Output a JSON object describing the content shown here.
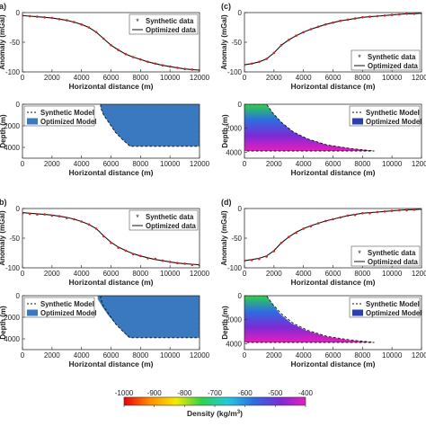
{
  "chart_data": [
    {
      "panel": "a",
      "label": "a)",
      "type": "line",
      "xlabel": "Horizontal distance (m)",
      "ylabel": "Anomaly (mGal)",
      "xlim": [
        0,
        12000
      ],
      "ylim": [
        -100,
        0
      ],
      "xticks": [
        0,
        2000,
        4000,
        6000,
        8000,
        10000,
        12000
      ],
      "yticks": [
        -100,
        -50,
        0
      ],
      "legend": {
        "position": "top-right",
        "entries": [
          "Synthetic data",
          "Optimized data"
        ]
      },
      "series": [
        {
          "name": "Synthetic data",
          "style": "markers",
          "x": [
            0,
            500,
            1000,
            1500,
            2000,
            2500,
            3000,
            3500,
            4000,
            4500,
            5000,
            5500,
            6000,
            6500,
            7000,
            7500,
            8000,
            8500,
            9000,
            9500,
            10000,
            10500,
            11000,
            11500,
            12000
          ],
          "y": [
            -5,
            -6,
            -7,
            -8,
            -9,
            -11,
            -13,
            -16,
            -20,
            -25,
            -33,
            -44,
            -55,
            -63,
            -70,
            -75,
            -79,
            -83,
            -86,
            -89,
            -91,
            -93,
            -95,
            -96,
            -97
          ]
        },
        {
          "name": "Optimized data",
          "style": "line",
          "x": [
            0,
            500,
            1000,
            1500,
            2000,
            2500,
            3000,
            3500,
            4000,
            4500,
            5000,
            5500,
            6000,
            6500,
            7000,
            7500,
            8000,
            8500,
            9000,
            9500,
            10000,
            10500,
            11000,
            11500,
            12000
          ],
          "y": [
            -5,
            -6,
            -7,
            -8,
            -9,
            -11,
            -13,
            -16,
            -20,
            -25,
            -33,
            -44,
            -55,
            -63,
            -70,
            -75,
            -79,
            -83,
            -86,
            -89,
            -91,
            -93,
            -95,
            -96,
            -97
          ]
        }
      ]
    },
    {
      "panel": "c",
      "label": "(c)",
      "type": "line",
      "xlabel": "Horizontal distance (m)",
      "ylabel": "Anomaly (mGal)",
      "xlim": [
        0,
        12000
      ],
      "ylim": [
        -100,
        0
      ],
      "xticks": [
        0,
        2000,
        4000,
        6000,
        8000,
        10000,
        12000
      ],
      "yticks": [
        -100,
        -50,
        0
      ],
      "legend": {
        "position": "bottom-right",
        "entries": [
          "Synthetic data",
          "Optimized data"
        ]
      },
      "series": [
        {
          "name": "Synthetic data",
          "style": "markers",
          "x": [
            0,
            500,
            1000,
            1500,
            2000,
            2500,
            3000,
            3500,
            4000,
            4500,
            5000,
            5500,
            6000,
            6500,
            7000,
            7500,
            8000,
            8500,
            9000,
            9500,
            10000,
            10500,
            11000,
            11500,
            12000
          ],
          "y": [
            -88,
            -86,
            -83,
            -78,
            -68,
            -55,
            -46,
            -39,
            -33,
            -28,
            -24,
            -20,
            -17,
            -14,
            -12,
            -10,
            -8,
            -7,
            -6,
            -5,
            -4,
            -3,
            -2,
            -2,
            -1
          ]
        },
        {
          "name": "Optimized data",
          "style": "line",
          "x": [
            0,
            500,
            1000,
            1500,
            2000,
            2500,
            3000,
            3500,
            4000,
            4500,
            5000,
            5500,
            6000,
            6500,
            7000,
            7500,
            8000,
            8500,
            9000,
            9500,
            10000,
            10500,
            11000,
            11500,
            12000
          ],
          "y": [
            -88,
            -86,
            -83,
            -78,
            -68,
            -55,
            -46,
            -39,
            -33,
            -28,
            -24,
            -20,
            -17,
            -14,
            -12,
            -10,
            -8,
            -7,
            -6,
            -5,
            -4,
            -3,
            -2,
            -2,
            -1
          ]
        }
      ]
    },
    {
      "panel": "a-model",
      "type": "area",
      "xlabel": "Horizontal distance (m)",
      "ylabel": "Depth (m)",
      "xlim": [
        0,
        12000
      ],
      "ylim": [
        5000,
        0
      ],
      "xticks": [
        0,
        2000,
        4000,
        6000,
        8000,
        10000,
        12000
      ],
      "yticks": [
        0,
        2000,
        4000
      ],
      "legend": {
        "position": "top-left",
        "entries": [
          "Synthetic Model",
          "Optimized Model"
        ]
      },
      "fill_color": "#3a78c0",
      "series": [
        {
          "name": "Synthetic Model",
          "style": "dashed-outline",
          "x": [
            5300,
            5300,
            5500,
            5900,
            6300,
            6800,
            7300,
            12000,
            12000
          ],
          "y": [
            0,
            300,
            1000,
            1800,
            2600,
            3300,
            3900,
            3900,
            0
          ]
        },
        {
          "name": "Optimized Model",
          "style": "filled",
          "x": [
            5300,
            5300,
            5500,
            5900,
            6300,
            6800,
            7300,
            12000,
            12000
          ],
          "y": [
            0,
            300,
            1000,
            1800,
            2600,
            3300,
            3900,
            3900,
            0
          ]
        }
      ]
    },
    {
      "panel": "c-model",
      "type": "heatmap",
      "xlabel": "Horizontal distance (m)",
      "ylabel": "Depth (m)",
      "xlim": [
        0,
        12000
      ],
      "ylim": [
        4500,
        0
      ],
      "xticks": [
        0,
        2000,
        4000,
        6000,
        8000,
        10000,
        12000
      ],
      "yticks": [
        0,
        2000,
        4000
      ],
      "legend": {
        "position": "top-right",
        "entries": [
          "Synthetic Model",
          "Optimized Model"
        ]
      },
      "series": [
        {
          "name": "Synthetic Model",
          "style": "dashed-outline",
          "x": [
            0,
            1500,
            1900,
            2500,
            3300,
            4300,
            5600,
            7200,
            8800,
            0
          ],
          "y": [
            0,
            0,
            700,
            1500,
            2300,
            2900,
            3400,
            3700,
            3900,
            3900
          ]
        },
        {
          "name": "Optimized Model",
          "style": "filled",
          "x": [
            0,
            1500,
            1900,
            2500,
            3300,
            4300,
            5600,
            7200,
            8800,
            0
          ],
          "y": [
            0,
            0,
            700,
            1500,
            2300,
            2900,
            3400,
            3700,
            3900,
            3900
          ]
        }
      ],
      "density_by_depth": [
        {
          "depth": 0,
          "value": -750
        },
        {
          "depth": 1300,
          "value": -600
        },
        {
          "depth": 2600,
          "value": -480
        },
        {
          "depth": 3900,
          "value": -430
        }
      ]
    },
    {
      "panel": "b",
      "label": "b)",
      "type": "line",
      "xlabel": "Horizontal distance (m)",
      "ylabel": "Anomaly (mGal)",
      "xlim": [
        0,
        12000
      ],
      "ylim": [
        -100,
        0
      ],
      "xticks": [
        0,
        2000,
        4000,
        6000,
        8000,
        10000,
        12000
      ],
      "yticks": [
        -100,
        -50,
        0
      ],
      "legend": {
        "position": "top-right",
        "entries": [
          "Synthetic data",
          "Optimized data"
        ]
      },
      "series": [
        {
          "name": "Synthetic data",
          "style": "markers",
          "x": [
            0,
            500,
            1000,
            1500,
            2000,
            2500,
            3000,
            3500,
            4000,
            4500,
            5000,
            5500,
            6000,
            6500,
            7000,
            7500,
            8000,
            8500,
            9000,
            9500,
            10000,
            10500,
            11000,
            11500,
            12000
          ],
          "y": [
            -8,
            -9,
            -10,
            -10,
            -12,
            -13,
            -16,
            -18,
            -22,
            -27,
            -34,
            -47,
            -58,
            -66,
            -71,
            -77,
            -80,
            -84,
            -85,
            -88,
            -90,
            -92,
            -93,
            -95,
            -95
          ]
        },
        {
          "name": "Optimized data",
          "style": "line",
          "x": [
            0,
            500,
            1000,
            1500,
            2000,
            2500,
            3000,
            3500,
            4000,
            4500,
            5000,
            5500,
            6000,
            6500,
            7000,
            7500,
            8000,
            8500,
            9000,
            9500,
            10000,
            10500,
            11000,
            11500,
            12000
          ],
          "y": [
            -7,
            -8,
            -9,
            -10,
            -11,
            -13,
            -15,
            -18,
            -22,
            -27,
            -34,
            -46,
            -57,
            -65,
            -71,
            -76,
            -80,
            -83,
            -86,
            -88,
            -90,
            -92,
            -93,
            -94,
            -95
          ]
        }
      ]
    },
    {
      "panel": "d",
      "label": "(d)",
      "type": "line",
      "xlabel": "Horizontal distance (m)",
      "ylabel": "Anomaly (mGal)",
      "xlim": [
        0,
        12000
      ],
      "ylim": [
        -100,
        0
      ],
      "xticks": [
        0,
        2000,
        4000,
        6000,
        8000,
        10000,
        12000
      ],
      "yticks": [
        -100,
        -50,
        0
      ],
      "legend": {
        "position": "bottom-right",
        "entries": [
          "Synthetic data",
          "Optimized data"
        ]
      },
      "series": [
        {
          "name": "Synthetic data",
          "style": "markers",
          "x": [
            0,
            500,
            1000,
            1500,
            2000,
            2500,
            3000,
            3500,
            4000,
            4500,
            5000,
            5500,
            6000,
            6500,
            7000,
            7500,
            8000,
            8500,
            9000,
            9500,
            10000,
            10500,
            11000,
            11500,
            12000
          ],
          "y": [
            -88,
            -87,
            -85,
            -81,
            -72,
            -58,
            -48,
            -41,
            -34,
            -30,
            -25,
            -21,
            -18,
            -15,
            -12,
            -11,
            -8,
            -8,
            -6,
            -5,
            -4,
            -3,
            -3,
            -2,
            -1
          ]
        },
        {
          "name": "Optimized data",
          "style": "line",
          "x": [
            0,
            500,
            1000,
            1500,
            2000,
            2500,
            3000,
            3500,
            4000,
            4500,
            5000,
            5500,
            6000,
            6500,
            7000,
            7500,
            8000,
            8500,
            9000,
            9500,
            10000,
            10500,
            11000,
            11500,
            12000
          ],
          "y": [
            -88,
            -86,
            -84,
            -80,
            -71,
            -58,
            -48,
            -40,
            -34,
            -29,
            -25,
            -21,
            -18,
            -15,
            -12,
            -10,
            -8,
            -7,
            -6,
            -5,
            -4,
            -3,
            -2,
            -2,
            -1
          ]
        }
      ]
    },
    {
      "panel": "b-model",
      "type": "area",
      "xlabel": "Horizontal distance (m)",
      "ylabel": "Depth (m)",
      "xlim": [
        0,
        12000
      ],
      "ylim": [
        5000,
        0
      ],
      "xticks": [
        0,
        2000,
        4000,
        6000,
        8000,
        10000,
        12000
      ],
      "yticks": [
        0,
        2000,
        4000
      ],
      "legend": {
        "position": "top-left",
        "entries": [
          "Synthetic Model",
          "Optimized Model"
        ]
      },
      "fill_color": "#3a78c0",
      "series": [
        {
          "name": "Synthetic Model",
          "style": "dashed-outline",
          "x": [
            5300,
            5300,
            5500,
            5900,
            6300,
            6800,
            7300,
            12000,
            12000
          ],
          "y": [
            0,
            300,
            1000,
            1800,
            2600,
            3300,
            3900,
            3900,
            0
          ]
        },
        {
          "name": "Optimized Model",
          "style": "filled",
          "x": [
            5100,
            5100,
            5400,
            5800,
            6300,
            6800,
            7200,
            12000,
            12000
          ],
          "y": [
            0,
            300,
            1000,
            1800,
            2600,
            3300,
            3900,
            3900,
            0
          ]
        }
      ]
    },
    {
      "panel": "d-model",
      "type": "heatmap",
      "xlabel": "Horizontal distance (m)",
      "ylabel": "Depth (m)",
      "xlim": [
        0,
        12000
      ],
      "ylim": [
        4500,
        0
      ],
      "xticks": [
        0,
        2000,
        4000,
        6000,
        8000,
        10000,
        12000
      ],
      "yticks": [
        0,
        2000,
        4000
      ],
      "legend": {
        "position": "top-right",
        "entries": [
          "Synthetic Model",
          "Optimized Model"
        ]
      },
      "series": [
        {
          "name": "Synthetic Model",
          "style": "dashed-outline",
          "x": [
            0,
            1500,
            1900,
            2500,
            3300,
            4300,
            5600,
            7200,
            8800,
            0
          ],
          "y": [
            0,
            0,
            700,
            1500,
            2300,
            2900,
            3400,
            3700,
            3900,
            3900
          ]
        },
        {
          "name": "Optimized Model",
          "style": "filled",
          "x": [
            0,
            1500,
            1900,
            2400,
            3200,
            4200,
            5500,
            7000,
            8600,
            0
          ],
          "y": [
            0,
            0,
            700,
            1500,
            2300,
            2900,
            3400,
            3700,
            3900,
            3900
          ]
        }
      ],
      "density_by_depth": [
        {
          "depth": 0,
          "value": -750
        },
        {
          "depth": 1300,
          "value": -600
        },
        {
          "depth": 2600,
          "value": -480
        },
        {
          "depth": 3900,
          "value": -430
        }
      ]
    }
  ],
  "colorbar": {
    "label": "Density (kg/m",
    "label_superscript": "3",
    "label_close": ")",
    "range": [
      -1000,
      -400
    ],
    "ticks": [
      "-1000",
      "-900",
      "-800",
      "-700",
      "-600",
      "-500",
      "-400"
    ],
    "colors": [
      "#e8000b",
      "#ff8c00",
      "#f5ea00",
      "#2fd24a",
      "#23c9e0",
      "#2b6fe0",
      "#7a2bd6",
      "#e61ebc"
    ]
  },
  "colors": {
    "marker": "#e0201c",
    "line": "#111111",
    "dash": "#111111"
  }
}
